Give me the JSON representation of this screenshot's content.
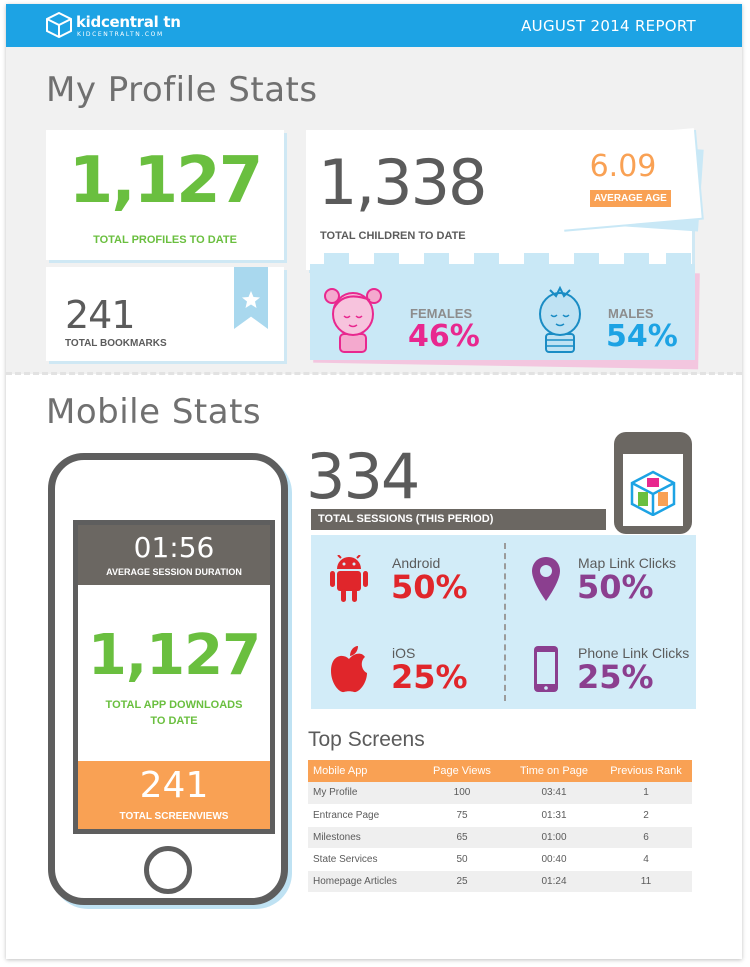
{
  "header": {
    "logo_name": "kidcentral tn",
    "logo_url": "KIDCENTRALTN.COM",
    "report_title": "AUGUST 2014 REPORT",
    "bar_color": "#1da3e4"
  },
  "profile": {
    "heading": "My Profile Stats",
    "total_profiles": {
      "value": "1,127",
      "label": "TOTAL PROFILES TO DATE"
    },
    "bookmarks": {
      "value": "241",
      "label": "TOTAL BOOKMARKS",
      "icon": "star-bookmark-icon"
    },
    "children": {
      "value": "1,338",
      "label": "TOTAL CHILDREN TO DATE"
    },
    "average_age": {
      "value": "6.09",
      "label": "AVERAGE AGE"
    },
    "females": {
      "label": "FEMALES",
      "value": "46%",
      "icon": "girl-face-icon",
      "color": "#e8288f"
    },
    "males": {
      "label": "MALES",
      "value": "54%",
      "icon": "boy-face-icon",
      "color": "#1da3e4"
    }
  },
  "mobile": {
    "heading": "Mobile Stats",
    "session_duration": {
      "value": "01:56",
      "label": "AVERAGE SESSION DURATION"
    },
    "app_downloads": {
      "value": "1,127",
      "label_line1": "TOTAL APP DOWNLOADS",
      "label_line2": "TO DATE"
    },
    "screenviews": {
      "value": "241",
      "label": "TOTAL SCREENVIEWS"
    },
    "sessions": {
      "value": "334",
      "label": "TOTAL SESSIONS (THIS PERIOD)"
    },
    "platforms": [
      {
        "name": "Android",
        "value": "50%",
        "icon": "android-icon",
        "color": "#e0262b"
      },
      {
        "name": "iOS",
        "value": "25%",
        "icon": "apple-icon",
        "color": "#e0262b"
      },
      {
        "name": "Map Link Clicks",
        "value": "50%",
        "icon": "map-pin-icon",
        "color": "#8b3f8f"
      },
      {
        "name": "Phone Link Clicks",
        "value": "25%",
        "icon": "phone-icon",
        "color": "#8b3f8f"
      }
    ]
  },
  "top_screens": {
    "heading": "Top Screens",
    "columns": [
      "Mobile App",
      "Page Views",
      "Time on Page",
      "Previous Rank"
    ],
    "rows": [
      [
        "My Profile",
        "100",
        "03:41",
        "1"
      ],
      [
        "Entrance Page",
        "75",
        "01:31",
        "2"
      ],
      [
        "Milestones",
        "65",
        "01:00",
        "6"
      ],
      [
        "State Services",
        "50",
        "00:40",
        "4"
      ],
      [
        "Homepage Articles",
        "25",
        "01:24",
        "11"
      ]
    ]
  }
}
